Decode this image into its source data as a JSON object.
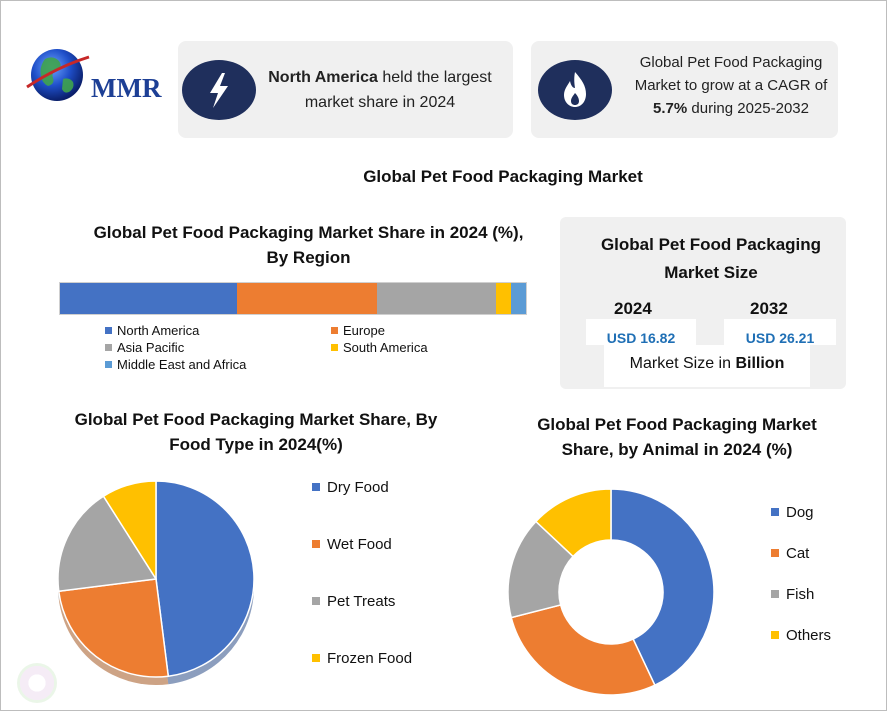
{
  "logo": {
    "text": "MMR",
    "icon": "globe-icon"
  },
  "cards": {
    "north_america": {
      "bold": "North America",
      "rest": " held the largest market share in 2024",
      "icon": "lightning-icon"
    },
    "cagr": {
      "line1": "Global Pet Food Packaging Market to grow at a CAGR of ",
      "bold": "5.7%",
      "line2": " during 2025-2032",
      "icon": "flame-icon"
    }
  },
  "main_title": "Global Pet Food Packaging Market",
  "market_size": {
    "title": "Global Pet Food Packaging Market Size",
    "year_a": "2024",
    "value_a": "USD 16.82",
    "year_b": "2032",
    "value_b": "USD 26.21",
    "unit_prefix": "Market Size in ",
    "unit_bold": "Billion"
  },
  "colors": {
    "blue": "#4472c4",
    "orange": "#ed7d31",
    "gray": "#a5a5a5",
    "yellow": "#ffc000",
    "light_blue": "#5b9bd5",
    "navy": "#1f2f5c"
  },
  "chart_data": [
    {
      "type": "bar",
      "stacked": true,
      "orientation": "horizontal",
      "title": "Global Pet Food Packaging Market Share in 2024 (%), By Region",
      "series": [
        {
          "name": "North America",
          "value": 38,
          "color": "#4472c4"
        },
        {
          "name": "Europe",
          "value": 30,
          "color": "#ed7d31"
        },
        {
          "name": "Asia Pacific",
          "value": 25.5,
          "color": "#a5a5a5"
        },
        {
          "name": "South America",
          "value": 3.3,
          "color": "#ffc000"
        },
        {
          "name": "Middle East and Africa",
          "value": 3.2,
          "color": "#5b9bd5"
        }
      ],
      "legend_position": "bottom"
    },
    {
      "type": "pie",
      "title": "Global Pet Food Packaging Market Share, By Food Type in 2024(%)",
      "slices": [
        {
          "name": "Dry Food",
          "value": 48,
          "color": "#4472c4"
        },
        {
          "name": "Wet Food",
          "value": 25,
          "color": "#ed7d31"
        },
        {
          "name": "Pet Treats",
          "value": 18,
          "color": "#a5a5a5"
        },
        {
          "name": "Frozen Food",
          "value": 9,
          "color": "#ffc000"
        }
      ],
      "legend_position": "right"
    },
    {
      "type": "pie",
      "donut": true,
      "title": "Global Pet Food Packaging Market Share, by Animal in 2024 (%)",
      "slices": [
        {
          "name": "Dog",
          "value": 43,
          "color": "#4472c4"
        },
        {
          "name": "Cat",
          "value": 28,
          "color": "#ed7d31"
        },
        {
          "name": "Fish",
          "value": 16,
          "color": "#a5a5a5"
        },
        {
          "name": "Others",
          "value": 13,
          "color": "#ffc000"
        }
      ],
      "legend_position": "right"
    }
  ]
}
